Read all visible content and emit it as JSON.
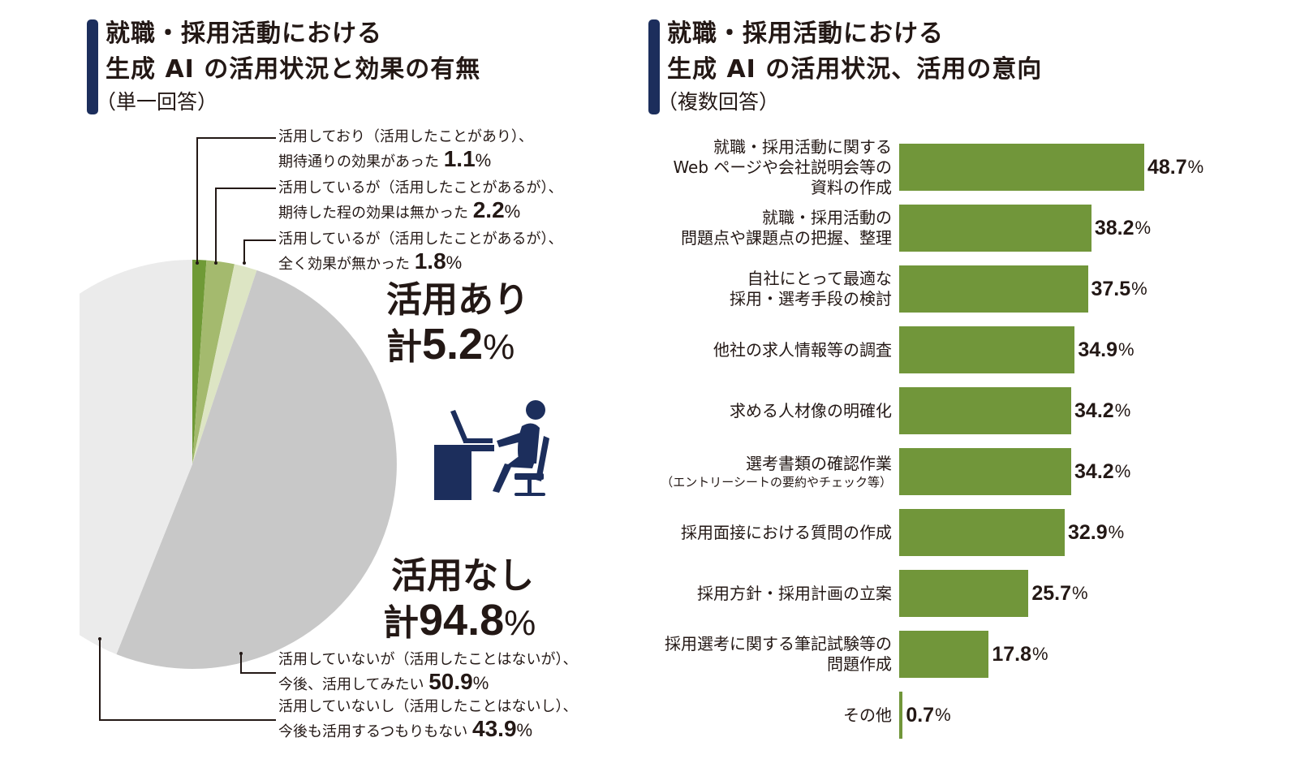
{
  "left_panel": {
    "title_line1": "就職・採用活動における",
    "title_line2": "生成 AI の活用状況と効果の有無",
    "subtitle": "（単一回答）",
    "group_yes": {
      "label": "活用あり",
      "prefix": "計",
      "value": "5.2",
      "unit": "%"
    },
    "group_no": {
      "label": "活用なし",
      "prefix": "計",
      "value": "94.8",
      "unit": "%"
    },
    "slices": [
      {
        "line1": "活用しており（活用したことがあり）、",
        "line2": "期待通りの効果があった",
        "value": "1.1",
        "unit": "%"
      },
      {
        "line1": "活用しているが（活用したことがあるが）、",
        "line2": "期待した程の効果は無かった",
        "value": "2.2",
        "unit": "%"
      },
      {
        "line1": "活用しているが（活用したことがあるが）、",
        "line2": "全く効果が無かった",
        "value": "1.8",
        "unit": "%"
      },
      {
        "line1": "活用していないが（活用したことはないが）、",
        "line2": "今後、活用してみたい",
        "value": "50.9",
        "unit": "%"
      },
      {
        "line1": "活用していないし（活用したことはないし）、",
        "line2": "今後も活用するつもりもない",
        "value": "43.9",
        "unit": "%"
      }
    ],
    "icon": "person-at-desk-laptop-icon"
  },
  "right_panel": {
    "title_line1": "就職・採用活動における",
    "title_line2": "生成 AI の活用状況、活用の意向",
    "subtitle": "（複数回答）",
    "bars": [
      {
        "lines": [
          "就職・採用活動に関する",
          "Web ページや会社説明会等の",
          "資料の作成"
        ],
        "note": "",
        "value": "48.7",
        "unit": "%"
      },
      {
        "lines": [
          "就職・採用活動の",
          "問題点や課題点の把握、整理"
        ],
        "note": "",
        "value": "38.2",
        "unit": "%"
      },
      {
        "lines": [
          "自社にとって最適な",
          "採用・選考手段の検討"
        ],
        "note": "",
        "value": "37.5",
        "unit": "%"
      },
      {
        "lines": [
          "他社の求人情報等の調査"
        ],
        "note": "",
        "value": "34.9",
        "unit": "%"
      },
      {
        "lines": [
          "求める人材像の明確化"
        ],
        "note": "",
        "value": "34.2",
        "unit": "%"
      },
      {
        "lines": [
          "選考書類の確認作業"
        ],
        "note": "（エントリーシートの要約やチェック等）",
        "value": "34.2",
        "unit": "%"
      },
      {
        "lines": [
          "採用面接における質問の作成"
        ],
        "note": "",
        "value": "32.9",
        "unit": "%"
      },
      {
        "lines": [
          "採用方針・採用計画の立案"
        ],
        "note": "",
        "value": "25.7",
        "unit": "%"
      },
      {
        "lines": [
          "採用選考に関する筆記試験等の",
          "問題作成"
        ],
        "note": "",
        "value": "17.8",
        "unit": "%"
      },
      {
        "lines": [
          "その他"
        ],
        "note": "",
        "value": "0.7",
        "unit": "%"
      }
    ]
  },
  "colors": {
    "accent": "#1c2e5c",
    "bar": "#71963a",
    "slice_effective": "#6f9a36",
    "slice_less": "#a4ba6e",
    "slice_none": "#dde5c4",
    "slice_want": "#c8c8c8",
    "slice_never": "#ebebeb",
    "text": "#231815"
  },
  "chart_data": [
    {
      "type": "pie",
      "title": "就職・採用活動における生成 AI の活用状況と効果の有無（単一回答）",
      "categories": [
        "活用しており（活用したことがあり）、期待通りの効果があった",
        "活用しているが（活用したことがあるが）、期待した程の効果は無かった",
        "活用しているが（活用したことがあるが）、全く効果が無かった",
        "活用していないが（活用したことはないが）、今後、活用してみたい",
        "活用していないし（活用したことはないし）、今後も活用するつもりもない"
      ],
      "values": [
        1.1,
        2.2,
        1.8,
        50.9,
        43.9
      ],
      "unit": "%",
      "annotations": [
        "活用あり 計5.2%",
        "活用なし 計94.8%"
      ]
    },
    {
      "type": "bar",
      "orientation": "horizontal",
      "title": "就職・採用活動における生成 AI の活用状況、活用の意向（複数回答）",
      "categories": [
        "就職・採用活動に関するWeb ページや会社説明会等の資料の作成",
        "就職・採用活動の問題点や課題点の把握、整理",
        "自社にとって最適な採用・選考手段の検討",
        "他社の求人情報等の調査",
        "求める人材像の明確化",
        "選考書類の確認作業（エントリーシートの要約やチェック等）",
        "採用面接における質問の作成",
        "採用方針・採用計画の立案",
        "採用選考に関する筆記試験等の問題作成",
        "その他"
      ],
      "values": [
        48.7,
        38.2,
        37.5,
        34.9,
        34.2,
        34.2,
        32.9,
        25.7,
        17.8,
        0.7
      ],
      "unit": "%",
      "xlabel": "",
      "ylabel": "",
      "grid": false,
      "legend": "none"
    }
  ]
}
